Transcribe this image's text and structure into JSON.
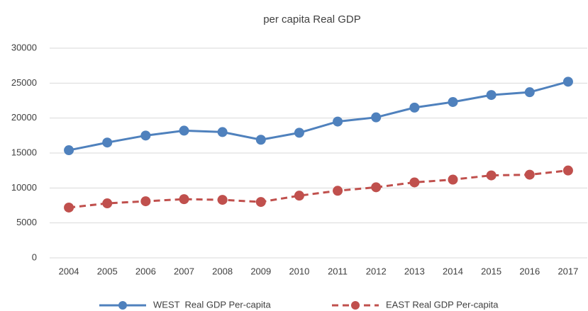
{
  "chart_data": {
    "type": "line",
    "title": "per capita Real GDP",
    "categories": [
      "2004",
      "2005",
      "2006",
      "2007",
      "2008",
      "2009",
      "2010",
      "2011",
      "2012",
      "2013",
      "2014",
      "2015",
      "2016",
      "2017"
    ],
    "series": [
      {
        "name": "WEST  Real GDP Per-capita",
        "color": "#4f81bd",
        "style": "solid",
        "values": [
          15400,
          16500,
          17500,
          18200,
          18000,
          16900,
          17900,
          19500,
          20100,
          21500,
          22300,
          23300,
          23700,
          25200
        ]
      },
      {
        "name": "EAST Real GDP Per-capita",
        "color": "#c0504d",
        "style": "dashed",
        "values": [
          7200,
          7800,
          8100,
          8400,
          8300,
          8000,
          8900,
          9600,
          10100,
          10800,
          11200,
          11800,
          11900,
          12500
        ]
      }
    ],
    "ylim": [
      0,
      30000
    ],
    "yticks": [
      0,
      5000,
      10000,
      15000,
      20000,
      25000,
      30000
    ],
    "grid": true,
    "legend": "bottom"
  }
}
